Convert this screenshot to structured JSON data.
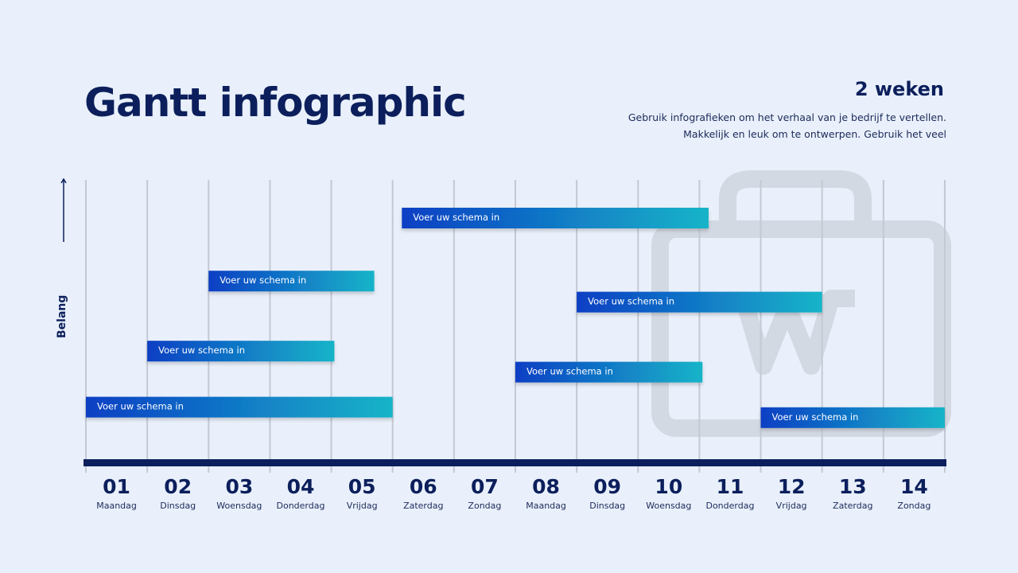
{
  "header": {
    "title": "Gantt infographic",
    "subtitle_heading": "2 weken",
    "subtitle_text_1": "Gebruik infografieken om het verhaal van je bedrijf te vertellen.",
    "subtitle_text_2": "Makkelijk en leuk om te ontwerpen. Gebruik het veel"
  },
  "chart_data": {
    "type": "gantt",
    "ylabel": "Belang",
    "watermark_icon": "briefcase-icon",
    "colors": {
      "bar_start": "#0a3fc4",
      "bar_end": "#18b4c8",
      "axis": "#0c1f5c",
      "grid": "#c4c9d4"
    },
    "days": [
      {
        "num": "01",
        "name": "Maandag"
      },
      {
        "num": "02",
        "name": "Dinsdag"
      },
      {
        "num": "03",
        "name": "Woensdag"
      },
      {
        "num": "04",
        "name": "Donderdag"
      },
      {
        "num": "05",
        "name": "Vrijdag"
      },
      {
        "num": "06",
        "name": "Zaterdag"
      },
      {
        "num": "07",
        "name": "Zondag"
      },
      {
        "num": "08",
        "name": "Maandag"
      },
      {
        "num": "09",
        "name": "Dinsdag"
      },
      {
        "num": "10",
        "name": "Woensdag"
      },
      {
        "num": "11",
        "name": "Donderdag"
      },
      {
        "num": "12",
        "name": "Vrijdag"
      },
      {
        "num": "13",
        "name": "Zaterdag"
      },
      {
        "num": "14",
        "name": "Zondag"
      }
    ],
    "tasks": [
      {
        "label": "Voer uw schema in",
        "start": 5.15,
        "end": 10.15,
        "importance": 7
      },
      {
        "label": "Voer uw schema in",
        "start": 2,
        "end": 4.7,
        "importance": 5.2
      },
      {
        "label": "Voer uw schema in",
        "start": 8,
        "end": 12,
        "importance": 4.6
      },
      {
        "label": "Voer uw schema in",
        "start": 1,
        "end": 4.05,
        "importance": 3.2
      },
      {
        "label": "Voer uw schema in",
        "start": 7,
        "end": 10.05,
        "importance": 2.6
      },
      {
        "label": "Voer uw schema in",
        "start": 0,
        "end": 5,
        "importance": 1.6
      },
      {
        "label": "Voer uw schema in",
        "start": 11,
        "end": 14,
        "importance": 1.3
      }
    ]
  }
}
